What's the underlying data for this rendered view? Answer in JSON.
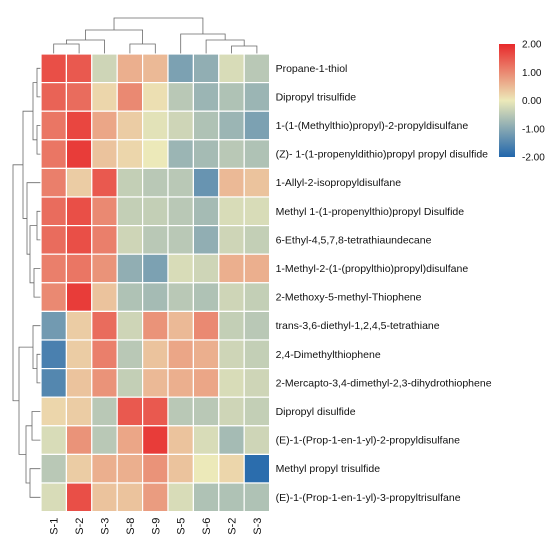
{
  "chart_data": {
    "type": "heatmap",
    "columns": [
      "S-1",
      "S-2",
      "S-3",
      "S-8",
      "S-9",
      "S-5",
      "S-6",
      "S-2",
      "S-3"
    ],
    "rows": [
      "Propane-1-thiol",
      "Dipropyl trisulfide",
      "1-(1-(Methylthio)propyl)-2-propyldisulfane",
      "(Z)- 1-(1-propenyldithio)propyl propyl disulfide",
      "1-Allyl-2-isopropyldisulfane",
      "Methyl 1-(1-propenylthio)propyl Disulfide",
      "6-Ethyl-4,5,7,8-tetrathiaundecane",
      "1-Methyl-2-(1-(propylthio)propyl)disulfane",
      "2-Methoxy-5-methyl-Thiophene",
      "trans-3,6-diethyl-1,2,4,5-tetrathiane",
      "2,4-Dimethylthiophene",
      "2-Mercapto-3,4-dimethyl-2,3-dihydrothiophene",
      "Dipropyl disulfide",
      "(E)-1-(Prop-1-en-1-yl)-2-propyldisulfane",
      "Methyl propyl trisulfide",
      "(E)-1-(Prop-1-en-1-yl)-3-propyltrisulfane"
    ],
    "values": [
      [
        1.6,
        1.5,
        -0.3,
        0.6,
        0.5,
        -1.1,
        -0.9,
        -0.2,
        -0.5
      ],
      [
        1.4,
        1.3,
        0.2,
        1.0,
        0.1,
        -0.5,
        -0.8,
        -0.6,
        -0.8
      ],
      [
        1.2,
        1.7,
        0.7,
        0.3,
        -0.1,
        -0.3,
        -0.6,
        -0.8,
        -1.1
      ],
      [
        1.2,
        1.8,
        0.4,
        0.2,
        0.0,
        -0.8,
        -0.7,
        -0.5,
        -0.6
      ],
      [
        1.1,
        0.3,
        1.5,
        -0.4,
        -0.5,
        -0.5,
        -1.3,
        0.5,
        0.4
      ],
      [
        1.3,
        1.6,
        1.0,
        -0.4,
        -0.4,
        -0.5,
        -0.7,
        -0.2,
        -0.2
      ],
      [
        1.3,
        1.6,
        1.1,
        -0.3,
        -0.5,
        -0.5,
        -0.9,
        -0.3,
        -0.4
      ],
      [
        1.1,
        1.2,
        0.9,
        -0.9,
        -1.1,
        -0.2,
        -0.3,
        0.6,
        0.6
      ],
      [
        1.0,
        1.8,
        0.4,
        -0.6,
        -0.7,
        -0.5,
        -0.6,
        -0.3,
        -0.4
      ],
      [
        -1.2,
        0.3,
        1.3,
        -0.3,
        0.9,
        0.5,
        1.0,
        -0.4,
        -0.5
      ],
      [
        -1.6,
        0.3,
        1.1,
        -0.5,
        0.4,
        0.7,
        0.6,
        -0.3,
        -0.4
      ],
      [
        -1.5,
        0.4,
        0.9,
        -0.4,
        0.5,
        0.6,
        0.7,
        -0.2,
        -0.3
      ],
      [
        0.2,
        0.3,
        -0.5,
        1.5,
        1.5,
        -0.5,
        -0.5,
        -0.3,
        -0.4
      ],
      [
        -0.2,
        0.9,
        -0.5,
        0.7,
        1.8,
        0.4,
        -0.2,
        -0.7,
        -0.3
      ],
      [
        -0.5,
        0.3,
        0.6,
        0.6,
        0.9,
        0.4,
        0.0,
        0.2,
        -1.9
      ],
      [
        -0.2,
        1.6,
        0.4,
        0.4,
        0.8,
        -0.2,
        -0.6,
        -0.6,
        -0.6
      ]
    ],
    "scale": {
      "min": -2.0,
      "max": 2.0,
      "ticks": [
        "2.00",
        "1.00",
        "0.00",
        "-1.00",
        "-2.00"
      ]
    },
    "colors": {
      "low": "#2166ac",
      "mid": "#ece9b9",
      "high": "#e8292b"
    },
    "legend_position": "top-right",
    "dendrograms": {
      "rows": true,
      "columns": true
    },
    "title": "",
    "xlabel": "",
    "ylabel": ""
  }
}
